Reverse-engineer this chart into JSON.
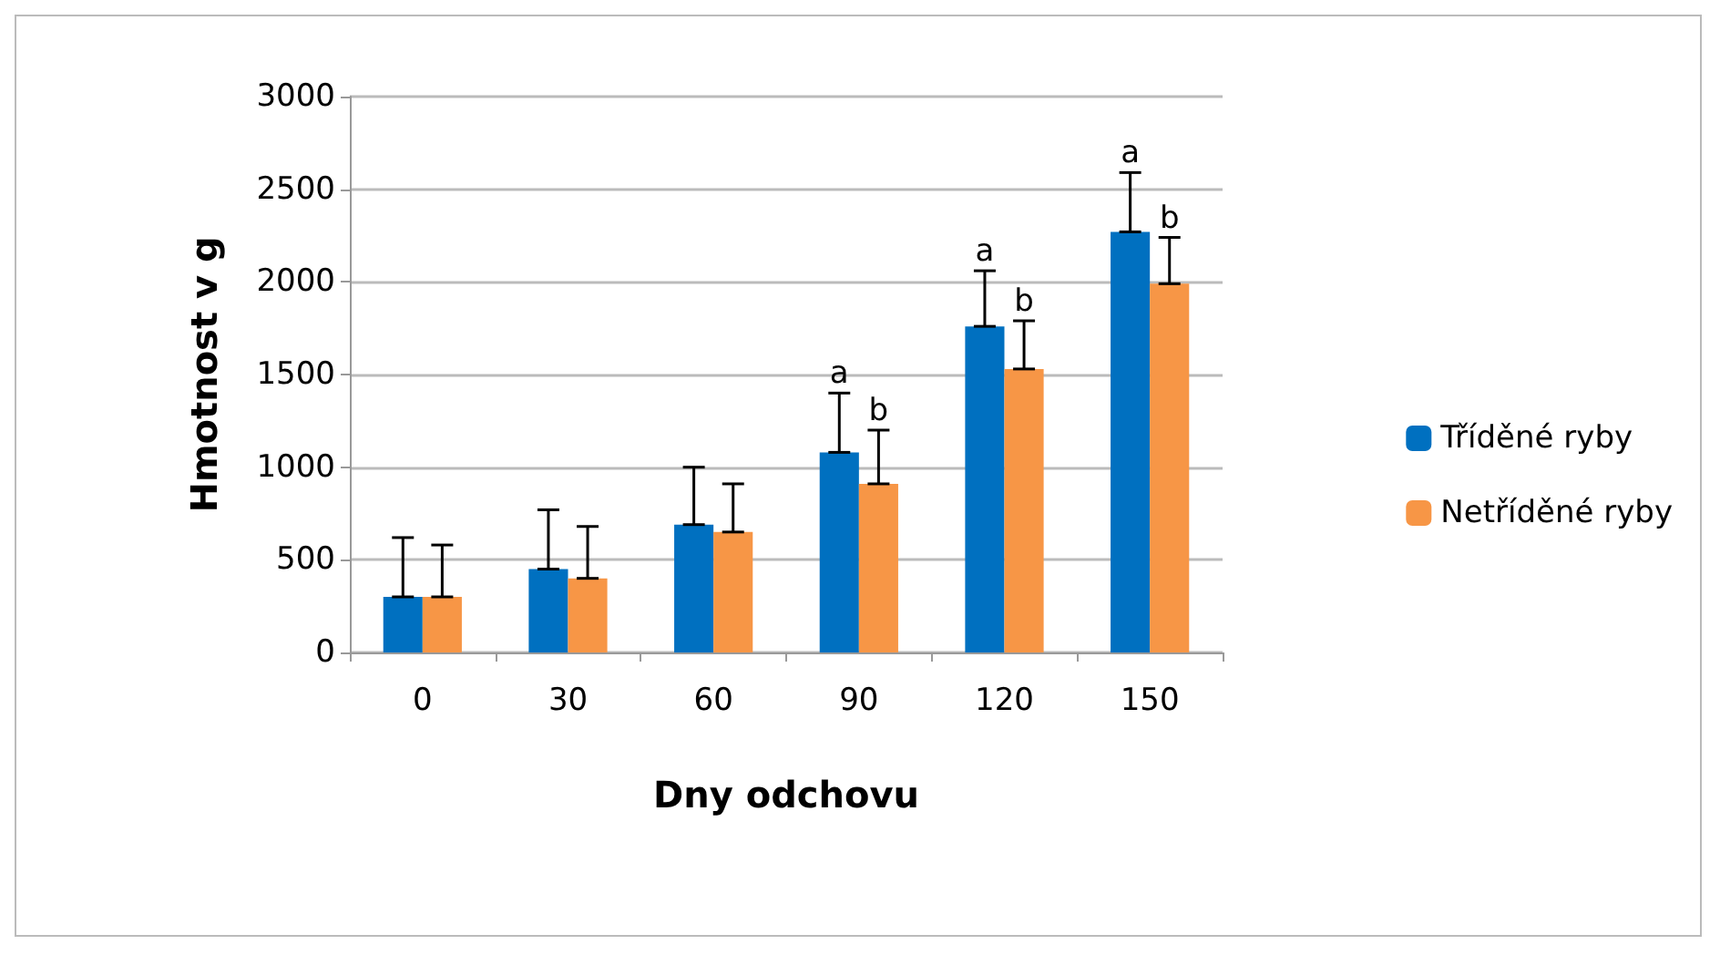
{
  "chart_data": {
    "type": "bar",
    "xlabel": "Dny odchovu",
    "ylabel": "Hmotnost v g",
    "categories": [
      "0",
      "30",
      "60",
      "90",
      "120",
      "150"
    ],
    "series": [
      {
        "name": "Tříděné ryby",
        "color": "#0070c0",
        "values": [
          300,
          450,
          690,
          1080,
          1760,
          2270
        ],
        "errors": [
          [
            300,
            620
          ],
          [
            450,
            770
          ],
          [
            690,
            1000
          ],
          [
            1080,
            1400
          ],
          [
            1760,
            2060
          ],
          [
            2270,
            2590
          ]
        ]
      },
      {
        "name": "Netříděné ryby",
        "color": "#f79646",
        "values": [
          300,
          400,
          650,
          910,
          1530,
          1990
        ],
        "errors": [
          [
            300,
            580
          ],
          [
            400,
            680
          ],
          [
            650,
            910
          ],
          [
            910,
            1200
          ],
          [
            1530,
            1790
          ],
          [
            1990,
            2240
          ]
        ]
      }
    ],
    "ylim": [
      0,
      3000
    ],
    "yticks": [
      0,
      500,
      1000,
      1500,
      2000,
      2500,
      3000
    ],
    "grid": "y",
    "legend": "right",
    "annotations": [
      {
        "text": "a",
        "x": "90",
        "y": 1400
      },
      {
        "text": "b",
        "x": "90",
        "y": 1200
      },
      {
        "text": "a",
        "x": "120",
        "y": 2060
      },
      {
        "text": "b",
        "x": "120",
        "y": 1790
      },
      {
        "text": "a",
        "x": "150",
        "y": 2590
      },
      {
        "text": "b",
        "x": "150",
        "y": 2240
      }
    ]
  }
}
